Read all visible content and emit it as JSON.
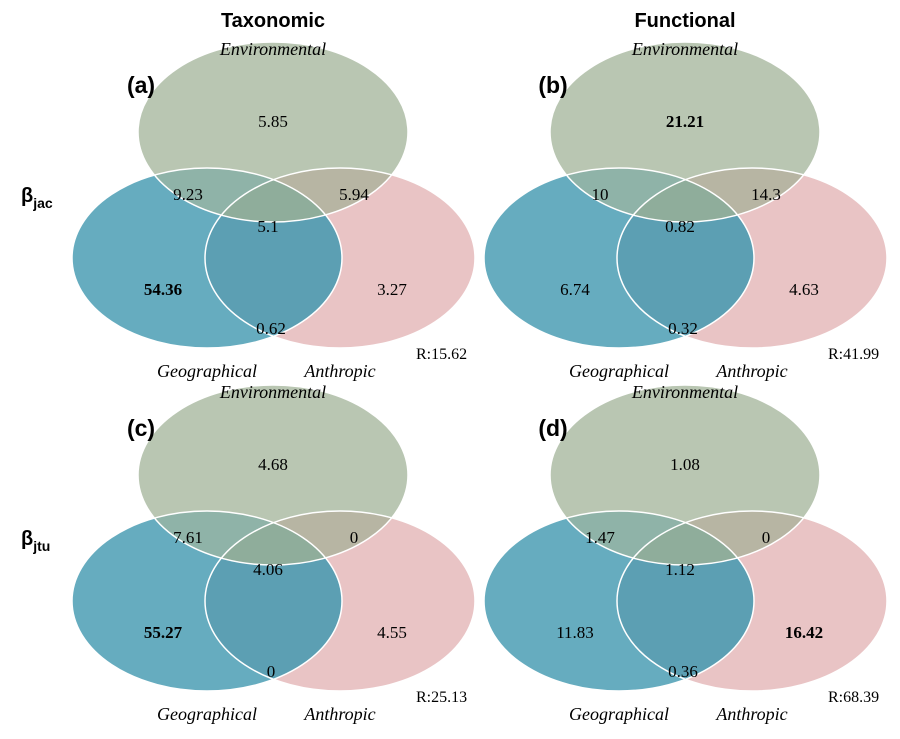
{
  "column_titles": [
    "Taxonomic",
    "Functional"
  ],
  "row_labels": [
    {
      "base": "β",
      "sub": "jac"
    },
    {
      "base": "β",
      "sub": "jtu"
    }
  ],
  "set_names": {
    "environmental": "Environmental",
    "geographical": "Geographical",
    "anthropic": "Anthropic"
  },
  "colors": {
    "environmental": "#b9c6b2",
    "geographical": "#66acbf",
    "anthropic": "#e9c4c5",
    "env_geo": "#8fb3a8",
    "env_anth": "#b7b5a3",
    "geo_anth": "#5c9fb3",
    "center": "#8fad9b"
  },
  "panels": [
    {
      "label": "(a)",
      "values": {
        "env": "5.85",
        "env_geo": "9.23",
        "env_anth": "5.94",
        "center": "5.1",
        "geo": "54.36",
        "geo_anth": "0.62",
        "anth": "3.27"
      },
      "bold": [
        "geo"
      ],
      "residual": "R:15.62"
    },
    {
      "label": "(b)",
      "values": {
        "env": "21.21",
        "env_geo": "10",
        "env_anth": "14.3",
        "center": "0.82",
        "geo": "6.74",
        "geo_anth": "0.32",
        "anth": "4.63"
      },
      "bold": [
        "env"
      ],
      "residual": "R:41.99"
    },
    {
      "label": "(c)",
      "values": {
        "env": "4.68",
        "env_geo": "7.61",
        "env_anth": "0",
        "center": "4.06",
        "geo": "55.27",
        "geo_anth": "0",
        "anth": "4.55"
      },
      "bold": [
        "geo"
      ],
      "residual": "R:25.13"
    },
    {
      "label": "(d)",
      "values": {
        "env": "1.08",
        "env_geo": "1.47",
        "env_anth": "0",
        "center": "1.12",
        "geo": "11.83",
        "geo_anth": "0.36",
        "anth": "16.42"
      },
      "bold": [
        "anth"
      ],
      "residual": "R:68.39"
    }
  ]
}
